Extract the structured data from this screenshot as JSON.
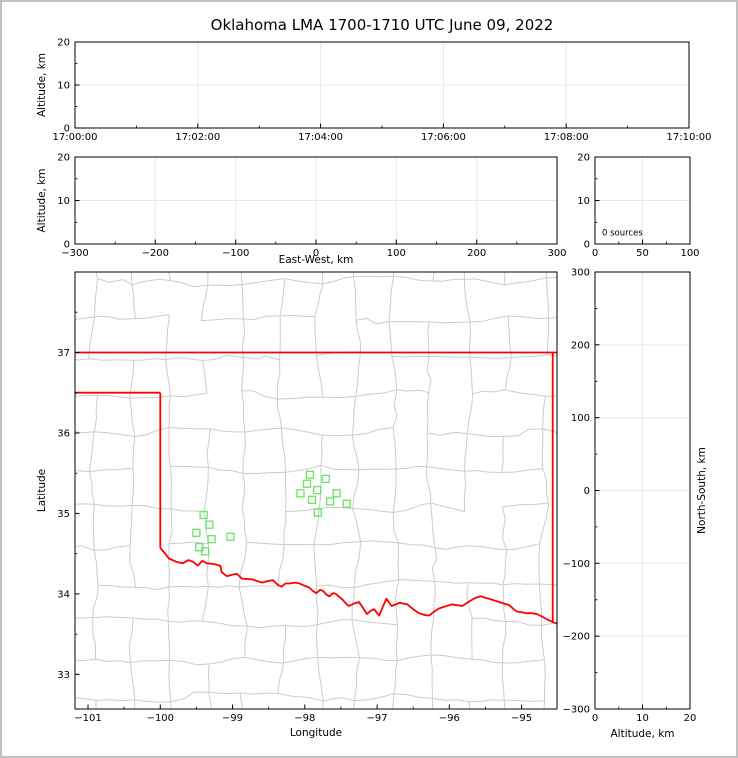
{
  "title": "Oklahoma LMA 1700-1710 UTC June 09, 2022",
  "colors": {
    "state_border": "#ff0000",
    "county_lines": "#cccccc",
    "station_marker": "#69e364",
    "gridline": "#e8e8e8",
    "axis": "#000000",
    "background": "#ffffff",
    "figure_frame": "#c0c0c0"
  },
  "panels": {
    "time_height": {
      "ylabel": "Altitude, km",
      "xlim": [
        0,
        600
      ],
      "ylim": [
        0,
        20
      ],
      "xticks": {
        "values": [
          0,
          120,
          240,
          360,
          480,
          600
        ],
        "labels": [
          "17:00:00",
          "17:02:00",
          "17:04:00",
          "17:06:00",
          "17:08:00",
          "17:10:00"
        ]
      },
      "xminor": [
        60,
        180,
        300,
        420,
        540
      ],
      "yticks": {
        "values": [
          0,
          10,
          20
        ],
        "labels": [
          "0",
          "10",
          "20"
        ]
      },
      "yminor": [
        5,
        15
      ]
    },
    "ew_height": {
      "xlabel": "East-West, km",
      "ylabel": "Altitude, km",
      "xlim": [
        -300,
        300
      ],
      "ylim": [
        0,
        20
      ],
      "xticks": {
        "values": [
          -300,
          -200,
          -100,
          0,
          100,
          200,
          300
        ],
        "labels": [
          "−300",
          "−200",
          "−100",
          "0",
          "100",
          "200",
          "300"
        ]
      },
      "xminor": [
        -250,
        -150,
        -50,
        50,
        150,
        250
      ],
      "yticks": {
        "values": [
          0,
          10,
          20
        ],
        "labels": [
          "0",
          "10",
          "20"
        ]
      },
      "yminor": [
        5,
        15
      ]
    },
    "histogram": {
      "annotation": "0 sources",
      "xlim": [
        0,
        100
      ],
      "ylim": [
        0,
        20
      ],
      "xticks": {
        "values": [
          0,
          50,
          100
        ],
        "labels": [
          "0",
          "50",
          "100"
        ]
      },
      "xminor": [
        25,
        75
      ],
      "yticks": {
        "values": [
          0,
          10,
          20
        ],
        "labels": [
          "0",
          "10",
          "20"
        ]
      },
      "yminor": [
        5,
        15
      ]
    },
    "map": {
      "xlabel": "Longitude",
      "ylabel": "Latitude",
      "xlim": [
        -101.18,
        -94.51
      ],
      "ylim": [
        32.57,
        38.0
      ],
      "xticks": {
        "values": [
          -101,
          -100,
          -99,
          -98,
          -97,
          -96,
          -95
        ],
        "labels": [
          "−101",
          "−100",
          "−99",
          "−98",
          "−97",
          "−96",
          "−95"
        ]
      },
      "xminor": [
        -100.5,
        -99.5,
        -98.5,
        -97.5,
        -96.5,
        -95.5
      ],
      "yticks": {
        "values": [
          33,
          34,
          35,
          36,
          37
        ],
        "labels": [
          "33",
          "34",
          "35",
          "36",
          "37"
        ]
      },
      "yminor": [
        33.5,
        34.5,
        35.5,
        36.5,
        37.5
      ]
    },
    "ns_height": {
      "xlabel": "Altitude, km",
      "ylabel": "North-South, km",
      "xlim": [
        0,
        20
      ],
      "ylim": [
        -300,
        300
      ],
      "xticks": {
        "values": [
          0,
          10,
          20
        ],
        "labels": [
          "0",
          "10",
          "20"
        ]
      },
      "xminor": [
        5,
        15
      ],
      "yticks": {
        "values": [
          -300,
          -200,
          -100,
          0,
          100,
          200,
          300
        ],
        "labels": [
          "−300",
          "−200",
          "−100",
          "0",
          "100",
          "200",
          "300"
        ]
      },
      "yminor": [
        -250,
        -150,
        -50,
        50,
        150,
        250
      ]
    }
  },
  "chart_data": {
    "type": "scatter",
    "title": "Oklahoma LMA 1700-1710 UTC June 09, 2022",
    "time_window_utc": [
      "17:00:00",
      "17:10:00"
    ],
    "source_count_annotation": "0 sources",
    "panels": [
      {
        "name": "altitude_vs_time",
        "ylabel": "Altitude, km",
        "xticks": [
          "17:00:00",
          "17:02:00",
          "17:04:00",
          "17:06:00",
          "17:08:00",
          "17:10:00"
        ],
        "ylim": [
          0,
          20
        ],
        "points": []
      },
      {
        "name": "altitude_vs_east_west",
        "xlabel": "East-West, km",
        "ylabel": "Altitude, km",
        "xlim": [
          -300,
          300
        ],
        "ylim": [
          0,
          20
        ],
        "points": []
      },
      {
        "name": "altitude_histogram",
        "annotation": "0 sources",
        "xlim": [
          0,
          100
        ],
        "ylim": [
          0,
          20
        ],
        "points": []
      },
      {
        "name": "plan_view_map",
        "xlabel": "Longitude",
        "ylabel": "Latitude",
        "xlim": [
          -101.18,
          -94.51
        ],
        "ylim": [
          32.57,
          38.0
        ],
        "stations": {
          "marker": "open-square",
          "color": "#69e364",
          "points": [
            [
              -99.4,
              34.98
            ],
            [
              -99.32,
              34.86
            ],
            [
              -99.5,
              34.76
            ],
            [
              -99.29,
              34.68
            ],
            [
              -99.03,
              34.71
            ],
            [
              -99.46,
              34.58
            ],
            [
              -99.38,
              34.53
            ],
            [
              -97.93,
              35.48
            ],
            [
              -97.71,
              35.43
            ],
            [
              -97.97,
              35.37
            ],
            [
              -97.83,
              35.29
            ],
            [
              -98.06,
              35.25
            ],
            [
              -97.56,
              35.25
            ],
            [
              -97.9,
              35.17
            ],
            [
              -97.65,
              35.15
            ],
            [
              -97.42,
              35.12
            ],
            [
              -97.82,
              35.01
            ]
          ]
        },
        "state_border": {
          "color": "#ff0000",
          "kansas_line": [
            [
              -101.18,
              37.0
            ],
            [
              -94.51,
              37.0
            ]
          ],
          "panhandle_line": [
            [
              -101.18,
              36.5
            ],
            [
              -100.0,
              36.5
            ]
          ],
          "texas_line": [
            [
              -100.0,
              36.5
            ],
            [
              -100.0,
              34.57
            ]
          ],
          "east_line": [
            [
              -94.57,
              37.0
            ],
            [
              -94.57,
              33.66
            ]
          ],
          "red_river": [
            [
              -100.0,
              34.57
            ],
            [
              -99.94,
              34.51
            ],
            [
              -99.88,
              34.44
            ],
            [
              -99.78,
              34.4
            ],
            [
              -99.69,
              34.38
            ],
            [
              -99.61,
              34.42
            ],
            [
              -99.55,
              34.4
            ],
            [
              -99.48,
              34.35
            ],
            [
              -99.42,
              34.41
            ],
            [
              -99.35,
              34.38
            ],
            [
              -99.25,
              34.37
            ],
            [
              -99.17,
              34.35
            ],
            [
              -99.15,
              34.27
            ],
            [
              -99.08,
              34.22
            ],
            [
              -99.0,
              34.24
            ],
            [
              -98.94,
              34.25
            ],
            [
              -98.87,
              34.19
            ],
            [
              -98.73,
              34.18
            ],
            [
              -98.59,
              34.14
            ],
            [
              -98.51,
              34.16
            ],
            [
              -98.44,
              34.17
            ],
            [
              -98.37,
              34.11
            ],
            [
              -98.32,
              34.09
            ],
            [
              -98.27,
              34.13
            ],
            [
              -98.21,
              34.13
            ],
            [
              -98.13,
              34.14
            ],
            [
              -98.07,
              34.13
            ],
            [
              -98.0,
              34.1
            ],
            [
              -97.94,
              34.08
            ],
            [
              -97.88,
              34.03
            ],
            [
              -97.84,
              34.01
            ],
            [
              -97.79,
              34.05
            ],
            [
              -97.75,
              34.04
            ],
            [
              -97.7,
              33.99
            ],
            [
              -97.66,
              33.97
            ],
            [
              -97.61,
              34.01
            ],
            [
              -97.57,
              34.0
            ],
            [
              -97.52,
              33.96
            ],
            [
              -97.48,
              33.93
            ],
            [
              -97.43,
              33.88
            ],
            [
              -97.39,
              33.85
            ],
            [
              -97.32,
              33.88
            ],
            [
              -97.25,
              33.9
            ],
            [
              -97.19,
              33.82
            ],
            [
              -97.14,
              33.75
            ],
            [
              -97.09,
              33.79
            ],
            [
              -97.04,
              33.81
            ],
            [
              -97.0,
              33.76
            ],
            [
              -96.97,
              33.73
            ],
            [
              -96.92,
              33.84
            ],
            [
              -96.87,
              33.94
            ],
            [
              -96.83,
              33.89
            ],
            [
              -96.8,
              33.85
            ],
            [
              -96.74,
              33.87
            ],
            [
              -96.69,
              33.89
            ],
            [
              -96.63,
              33.88
            ],
            [
              -96.58,
              33.87
            ],
            [
              -96.5,
              33.81
            ],
            [
              -96.42,
              33.76
            ],
            [
              -96.35,
              33.74
            ],
            [
              -96.28,
              33.73
            ],
            [
              -96.21,
              33.78
            ],
            [
              -96.14,
              33.82
            ],
            [
              -96.04,
              33.85
            ],
            [
              -95.96,
              33.87
            ],
            [
              -95.89,
              33.86
            ],
            [
              -95.82,
              33.85
            ],
            [
              -95.77,
              33.88
            ],
            [
              -95.72,
              33.91
            ],
            [
              -95.64,
              33.95
            ],
            [
              -95.56,
              33.97
            ],
            [
              -95.5,
              33.95
            ],
            [
              -95.45,
              33.94
            ],
            [
              -95.38,
              33.92
            ],
            [
              -95.31,
              33.9
            ],
            [
              -95.24,
              33.88
            ],
            [
              -95.17,
              33.86
            ],
            [
              -95.11,
              33.81
            ],
            [
              -95.06,
              33.78
            ],
            [
              -94.99,
              33.77
            ],
            [
              -94.93,
              33.76
            ],
            [
              -94.86,
              33.76
            ],
            [
              -94.79,
              33.75
            ],
            [
              -94.72,
              33.72
            ],
            [
              -94.66,
              33.69
            ],
            [
              -94.59,
              33.66
            ],
            [
              -94.51,
              33.63
            ]
          ]
        }
      },
      {
        "name": "north_south_vs_altitude",
        "xlabel": "Altitude, km",
        "ylabel": "North-South, km",
        "xlim": [
          0,
          20
        ],
        "ylim": [
          -300,
          300
        ],
        "points": []
      }
    ]
  }
}
